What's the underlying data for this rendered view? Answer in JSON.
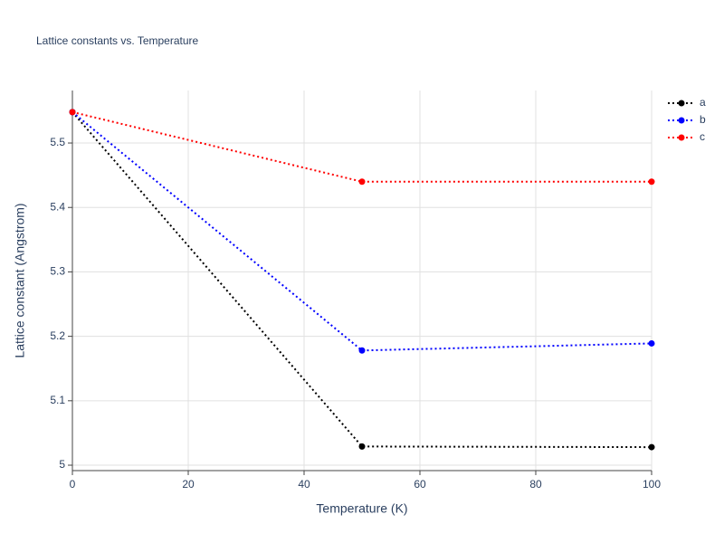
{
  "chart_data": {
    "type": "line",
    "title": "Lattice constants vs. Temperature",
    "x_label": "Temperature (K)",
    "y_label": "Lattice constant (Angstrom)",
    "x": [
      0,
      50,
      100
    ],
    "series": [
      {
        "name": "a",
        "color": "#000000",
        "values": [
          5.548,
          5.029,
          5.028
        ]
      },
      {
        "name": "b",
        "color": "#0000ff",
        "values": [
          5.548,
          5.178,
          5.189
        ]
      },
      {
        "name": "c",
        "color": "#ff0000",
        "values": [
          5.548,
          5.44,
          5.44
        ]
      }
    ],
    "xlim": [
      0,
      100
    ],
    "xticks": [
      0,
      20,
      40,
      60,
      80,
      100
    ],
    "ylim": [
      4.9916,
      5.5815
    ],
    "yticks": [
      5,
      5.1,
      5.2,
      5.3,
      5.4,
      5.5
    ],
    "grid": true,
    "legend": "top-right"
  }
}
